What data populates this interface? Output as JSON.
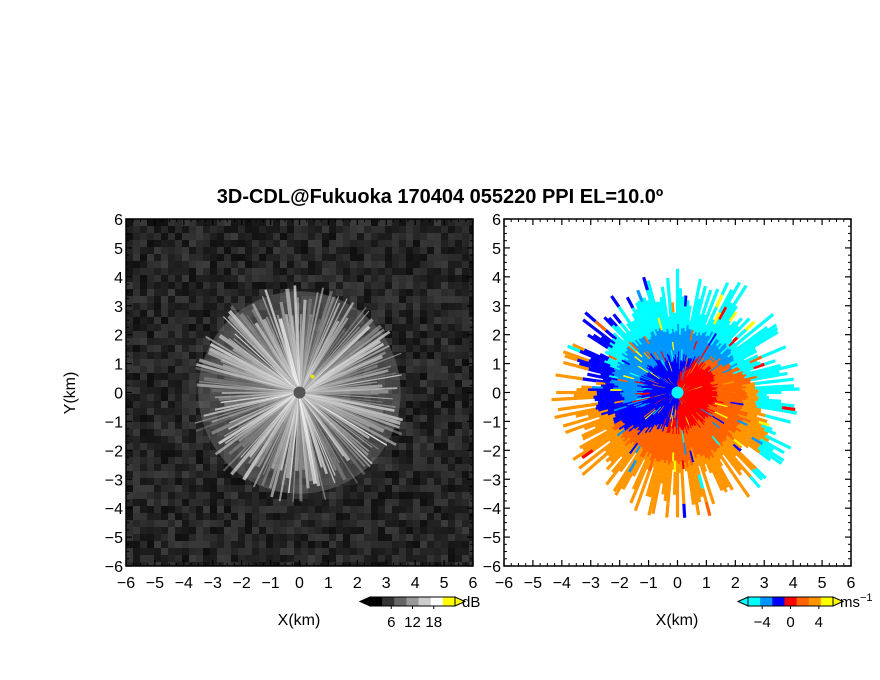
{
  "chart_data": [
    {
      "type": "heatmap",
      "panel": "reflectivity",
      "title": "3D-CDL@Fukuoka 170404 055220 PPI EL=10.0º",
      "xlabel": "X(km)",
      "ylabel": "Y(km)",
      "xlim": [
        -6,
        6
      ],
      "ylim": [
        -6,
        6
      ],
      "x_ticks": [
        "-6",
        "-5",
        "-4",
        "-3",
        "-2",
        "-1",
        "0",
        "1",
        "2",
        "3",
        "4",
        "5",
        "6"
      ],
      "y_ticks": [
        "-6",
        "-5",
        "-4",
        "-3",
        "-2",
        "-1",
        "0",
        "1",
        "2",
        "3",
        "4",
        "5",
        "6"
      ],
      "colorbar": {
        "unit": "dB",
        "ticks": [
          "6",
          "12",
          "18"
        ],
        "range": [
          0,
          24
        ],
        "colors": [
          "#000000",
          "#333333",
          "#666666",
          "#999999",
          "#cccccc",
          "#ffffff",
          "#ffff00"
        ]
      },
      "echo_radius_km": 3.5,
      "colormap": "grayscale"
    },
    {
      "type": "heatmap",
      "panel": "doppler_velocity",
      "xlabel": "X(km)",
      "xlim": [
        -6,
        6
      ],
      "ylim": [
        -6,
        6
      ],
      "x_ticks": [
        "-6",
        "-5",
        "-4",
        "-3",
        "-2",
        "-1",
        "0",
        "1",
        "2",
        "3",
        "4",
        "5",
        "6"
      ],
      "y_ticks": [
        "-6",
        "-5",
        "-4",
        "-3",
        "-2",
        "-1",
        "0",
        "1",
        "2",
        "3",
        "4",
        "5",
        "6"
      ],
      "colorbar": {
        "unit": "ms",
        "unit_superscript": "−1",
        "ticks": [
          "−4",
          "0",
          "4"
        ],
        "range": [
          -6,
          6
        ],
        "colors": [
          "#00ffff",
          "#0096ff",
          "#0000ff",
          "#ff0000",
          "#ff6400",
          "#ff9600",
          "#ffff00"
        ]
      },
      "echo_radius_km": 4.2,
      "colormap": "diverging cyan-blue-red-yellow"
    }
  ],
  "colors": {
    "axes": "#000000",
    "background": "#ffffff",
    "radar_background": "#1e1e1e"
  }
}
